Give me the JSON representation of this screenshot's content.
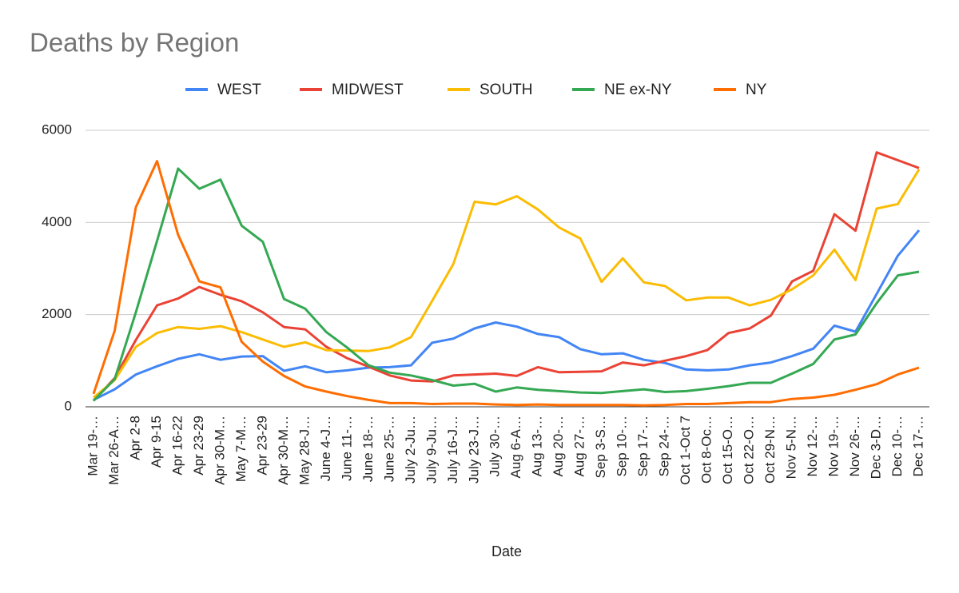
{
  "chart_data": {
    "type": "line",
    "title": "Deaths by Region",
    "x_label": "Date",
    "categories": [
      "Mar 19-…",
      "Mar 26-A…",
      "Apr 2-8",
      "Apr 9-15",
      "Apr 16-22",
      "Apr 23-29",
      "Apr 30-M…",
      "May 7-M…",
      "Apr 23-29",
      "Apr 30-M…",
      "May 28-J…",
      "June 4-J…",
      "June 11-…",
      "June 18-…",
      "June 25-…",
      "July 2-Ju…",
      "July 9-Ju…",
      "July 16-J…",
      "July 23-J…",
      "July 30-…",
      "Aug 6-A…",
      "Aug 13-…",
      "Aug 20-…",
      "Aug 27-…",
      "Sep 3-S…",
      "Sep 10-…",
      "Sep 17-…",
      "Sep 24-…",
      "Oct 1-Oct 7",
      "Oct 8-Oc…",
      "Oct 15-O…",
      "Oct 22-O…",
      "Oct 29-N…",
      "Nov 5-N…",
      "Nov 12-…",
      "Nov 19-…",
      "Nov 26-…",
      "Dec 3-D…",
      "Dec 10-…",
      "Dec 17-…"
    ],
    "series": [
      {
        "name": "WEST",
        "color": "#4285f4",
        "values": [
          150,
          380,
          700,
          880,
          1040,
          1140,
          1020,
          1090,
          1100,
          780,
          880,
          750,
          790,
          850,
          860,
          900,
          1390,
          1480,
          1700,
          1830,
          1740,
          1580,
          1510,
          1250,
          1140,
          1160,
          1020,
          950,
          810,
          790,
          810,
          900,
          960,
          1100,
          1260,
          1760,
          1630,
          2450,
          3280,
          3830
        ]
      },
      {
        "name": "MIDWEST",
        "color": "#ea4335",
        "values": [
          130,
          620,
          1450,
          2200,
          2350,
          2600,
          2430,
          2290,
          2050,
          1730,
          1680,
          1300,
          1050,
          870,
          680,
          570,
          550,
          680,
          700,
          720,
          670,
          860,
          750,
          760,
          770,
          960,
          900,
          1000,
          1100,
          1230,
          1600,
          1700,
          1980,
          2720,
          2950,
          4180,
          3820,
          5520,
          5350,
          5180
        ]
      },
      {
        "name": "SOUTH",
        "color": "#fbbc04",
        "values": [
          200,
          580,
          1300,
          1600,
          1730,
          1690,
          1750,
          1620,
          1460,
          1300,
          1400,
          1230,
          1220,
          1210,
          1290,
          1510,
          2300,
          3100,
          4450,
          4390,
          4570,
          4280,
          3890,
          3650,
          2710,
          3220,
          2700,
          2620,
          2310,
          2370,
          2370,
          2200,
          2320,
          2550,
          2850,
          3410,
          2750,
          4300,
          4400,
          5150
        ]
      },
      {
        "name": "NE ex-NY",
        "color": "#34a853",
        "values": [
          130,
          600,
          2050,
          3600,
          5170,
          4730,
          4930,
          3930,
          3580,
          2340,
          2130,
          1620,
          1280,
          900,
          740,
          680,
          580,
          460,
          500,
          330,
          420,
          370,
          340,
          310,
          300,
          340,
          380,
          320,
          340,
          390,
          450,
          520,
          520,
          720,
          930,
          1460,
          1570,
          2250,
          2850,
          2930
        ]
      },
      {
        "name": "NY",
        "color": "#ff6d01",
        "values": [
          280,
          1650,
          4330,
          5330,
          3730,
          2720,
          2590,
          1410,
          980,
          670,
          440,
          330,
          230,
          150,
          80,
          80,
          60,
          70,
          70,
          50,
          40,
          50,
          40,
          40,
          40,
          40,
          30,
          40,
          60,
          60,
          80,
          100,
          100,
          170,
          200,
          260,
          370,
          490,
          700,
          850
        ]
      }
    ],
    "ylim": [
      0,
      6000
    ],
    "yticks": [
      0,
      2000,
      4000,
      6000
    ],
    "grid": true,
    "legend": "top"
  }
}
